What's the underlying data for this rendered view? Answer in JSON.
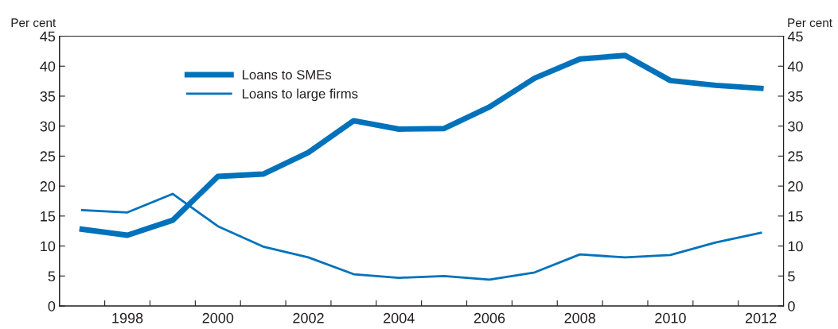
{
  "chart_data": {
    "type": "line",
    "ylabel": "Per cent",
    "y2label": "Per cent",
    "x": [
      1997.5,
      1998.5,
      1999.5,
      2000.5,
      2001.5,
      2002.5,
      2003.5,
      2004.5,
      2005.5,
      2006.5,
      2007.5,
      2008.5,
      2009.5,
      2010.5,
      2011.5,
      2012.5
    ],
    "xlim": [
      1997,
      2013
    ],
    "xticks": [
      {
        "value": 1998,
        "label": null
      },
      {
        "value": 1998.5,
        "label": "1998"
      },
      {
        "value": 1999,
        "label": null
      },
      {
        "value": 2000,
        "label": null
      },
      {
        "value": 2000.5,
        "label": "2000"
      },
      {
        "value": 2001,
        "label": null
      },
      {
        "value": 2002,
        "label": null
      },
      {
        "value": 2002.5,
        "label": "2002"
      },
      {
        "value": 2003,
        "label": null
      },
      {
        "value": 2004,
        "label": null
      },
      {
        "value": 2004.5,
        "label": "2004"
      },
      {
        "value": 2005,
        "label": null
      },
      {
        "value": 2006,
        "label": null
      },
      {
        "value": 2006.5,
        "label": "2006"
      },
      {
        "value": 2007,
        "label": null
      },
      {
        "value": 2008,
        "label": null
      },
      {
        "value": 2008.5,
        "label": "2008"
      },
      {
        "value": 2009,
        "label": null
      },
      {
        "value": 2010,
        "label": null
      },
      {
        "value": 2010.5,
        "label": "2010"
      },
      {
        "value": 2011,
        "label": null
      },
      {
        "value": 2012,
        "label": null
      },
      {
        "value": 2012.5,
        "label": "2012"
      }
    ],
    "ylim": [
      0,
      45
    ],
    "yticks": [
      0,
      5,
      10,
      15,
      20,
      25,
      30,
      35,
      40,
      45
    ],
    "y2lim": [
      0,
      45
    ],
    "y2ticks": [
      0,
      5,
      10,
      15,
      20,
      25,
      30,
      35,
      40,
      45
    ],
    "grid": false,
    "legend": "top left",
    "marker": "none",
    "line_style": "solid",
    "series": [
      {
        "name": "Loans to SMEs",
        "color": "#0072bb",
        "values": [
          12.8,
          11.8,
          14.3,
          21.6,
          22.0,
          25.6,
          30.9,
          29.5,
          29.6,
          33.2,
          38.0,
          41.2,
          41.8,
          37.6,
          36.8,
          36.3
        ]
      },
      {
        "name": "Loans to large firms",
        "color": "#0072bb",
        "values": [
          16.0,
          15.6,
          18.7,
          13.3,
          9.9,
          8.1,
          5.3,
          4.7,
          5.0,
          4.4,
          5.6,
          8.6,
          8.1,
          8.5,
          10.6,
          12.2
        ]
      }
    ]
  }
}
